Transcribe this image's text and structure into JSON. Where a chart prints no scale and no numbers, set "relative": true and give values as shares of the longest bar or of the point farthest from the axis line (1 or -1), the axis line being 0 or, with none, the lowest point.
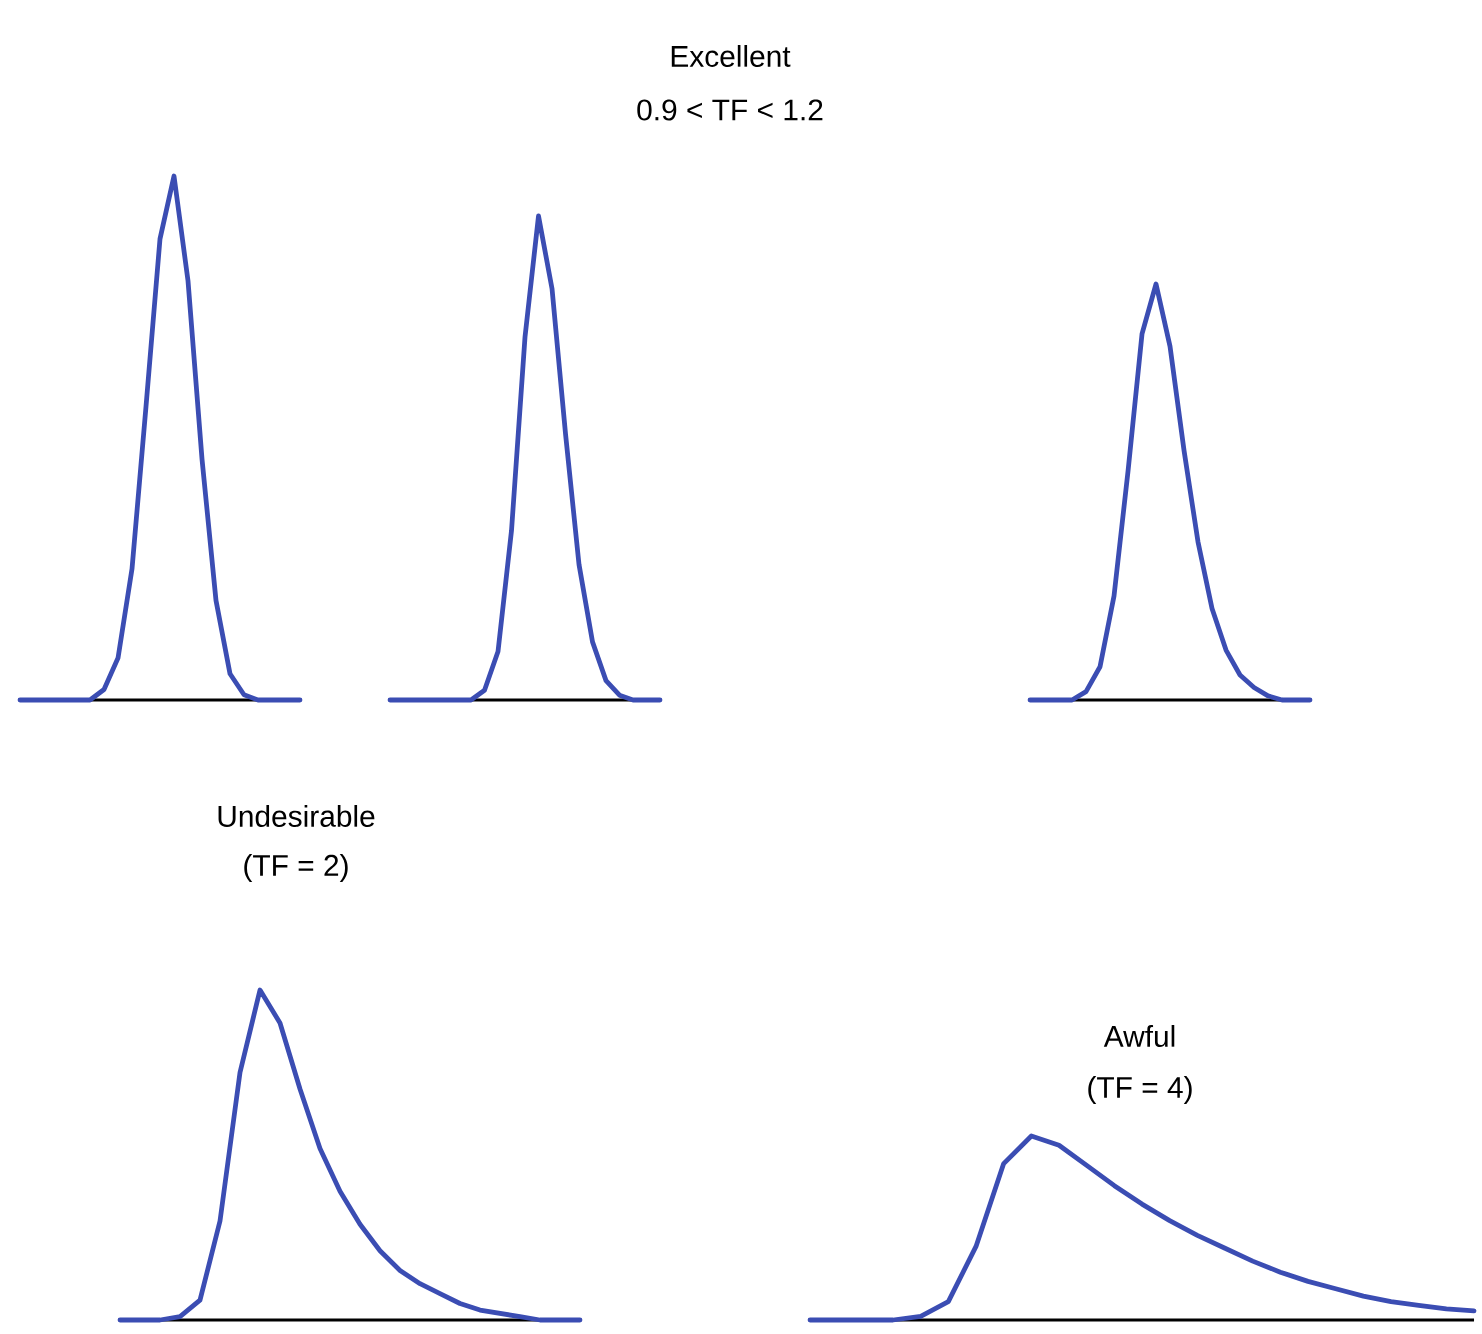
{
  "chart_data": [
    {
      "type": "line",
      "relative": true,
      "categories": [
        null,
        null,
        null,
        null,
        null,
        null,
        null,
        null,
        null,
        null,
        null,
        null,
        null,
        null,
        null,
        null,
        null,
        null,
        null,
        null,
        null
      ],
      "color": "#3b4db3",
      "values": [
        0,
        0,
        0,
        0,
        0,
        0,
        0.02,
        0.08,
        0.25,
        0.56,
        0.88,
        1,
        0.8,
        0.46,
        0.19,
        0.05,
        0.01,
        0,
        0,
        0,
        0
      ]
    },
    {
      "type": "line",
      "relative": true,
      "title": "Excellent",
      "subtitle": "0.9 < TF < 1.2",
      "categories": [
        null,
        null,
        null,
        null,
        null,
        null,
        null,
        null,
        null,
        null,
        null,
        null,
        null,
        null,
        null,
        null,
        null,
        null,
        null,
        null,
        null
      ],
      "color": "#3b4db3",
      "values": [
        0,
        0,
        0,
        0,
        0,
        0,
        0,
        0.02,
        0.1,
        0.35,
        0.75,
        1,
        0.85,
        0.55,
        0.28,
        0.12,
        0.04,
        0.01,
        0,
        0,
        0
      ]
    },
    {
      "type": "line",
      "relative": true,
      "categories": [
        null,
        null,
        null,
        null,
        null,
        null,
        null,
        null,
        null,
        null,
        null,
        null,
        null,
        null,
        null,
        null,
        null,
        null,
        null,
        null,
        null
      ],
      "color": "#3b4db3",
      "values": [
        0,
        0,
        0,
        0,
        0.02,
        0.08,
        0.25,
        0.55,
        0.88,
        1,
        0.85,
        0.6,
        0.38,
        0.22,
        0.12,
        0.06,
        0.03,
        0.01,
        0,
        0,
        0
      ]
    },
    {
      "type": "line",
      "relative": true,
      "title": "Undesirable",
      "subtitle": "(TF = 2)",
      "categories": [
        null,
        null,
        null,
        null,
        null,
        null,
        null,
        null,
        null,
        null,
        null,
        null,
        null,
        null,
        null,
        null,
        null,
        null,
        null,
        null,
        null,
        null,
        null,
        null
      ],
      "color": "#3b4db3",
      "values": [
        0,
        0,
        0,
        0.01,
        0.06,
        0.3,
        0.75,
        1,
        0.9,
        0.7,
        0.52,
        0.39,
        0.29,
        0.21,
        0.15,
        0.11,
        0.08,
        0.05,
        0.03,
        0.02,
        0.01,
        0,
        0,
        0
      ]
    },
    {
      "type": "line",
      "relative": true,
      "title": "Awful",
      "subtitle": "(TF = 4)",
      "categories": [
        null,
        null,
        null,
        null,
        null,
        null,
        null,
        null,
        null,
        null,
        null,
        null,
        null,
        null,
        null,
        null,
        null,
        null,
        null,
        null,
        null,
        null,
        null,
        null,
        null
      ],
      "color": "#3b4db3",
      "values": [
        0,
        0,
        0,
        0,
        0.02,
        0.1,
        0.4,
        0.85,
        1,
        0.95,
        0.84,
        0.73,
        0.63,
        0.54,
        0.46,
        0.39,
        0.32,
        0.26,
        0.21,
        0.17,
        0.13,
        0.1,
        0.08,
        0.06,
        0.05
      ]
    }
  ]
}
